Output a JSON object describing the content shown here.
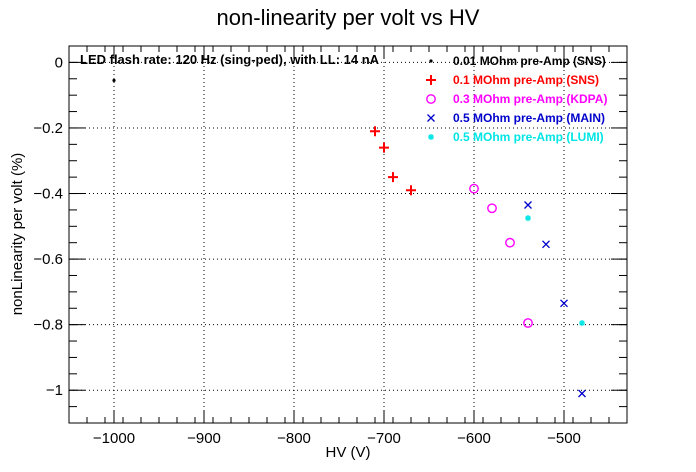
{
  "chart_data": {
    "type": "scatter",
    "title": "non-linearity per volt vs HV",
    "xlabel": "HV (V)",
    "ylabel": "nonLinearity per volt (%)",
    "xlim": [
      -1050,
      -430
    ],
    "ylim": [
      -1.1,
      0.05
    ],
    "x_ticks": [
      -1000,
      -900,
      -800,
      -700,
      -600,
      -500
    ],
    "y_ticks": [
      0,
      -0.2,
      -0.4,
      -0.6,
      -0.8,
      -1
    ],
    "grid": true,
    "annotation": "LED flash rate: 120 Hz  (sing-ped), with LL: 14 nA",
    "legend_position": "top-right",
    "series": [
      {
        "name": "0.01 MOhm pre-Amp (SNS)",
        "color": "#000000",
        "marker": "dot",
        "points": [
          [
            -1000,
            -0.055
          ]
        ]
      },
      {
        "name": "0.1 MOhm pre-Amp (SNS)",
        "color": "#ff0000",
        "marker": "plus",
        "points": [
          [
            -710,
            -0.21
          ],
          [
            -700,
            -0.26
          ],
          [
            -690,
            -0.35
          ],
          [
            -670,
            -0.39
          ]
        ]
      },
      {
        "name": "0.3 MOhm pre-Amp (KDPA)",
        "color": "#ff00ff",
        "marker": "circle",
        "points": [
          [
            -600,
            -0.385
          ],
          [
            -580,
            -0.445
          ],
          [
            -560,
            -0.55
          ],
          [
            -540,
            -0.795
          ]
        ]
      },
      {
        "name": "0.5 MOhm pre-Amp (MAIN)",
        "color": "#0000cc",
        "marker": "cross",
        "points": [
          [
            -540,
            -0.435
          ],
          [
            -520,
            -0.555
          ],
          [
            -500,
            -0.735
          ],
          [
            -480,
            -1.01
          ]
        ]
      },
      {
        "name": "0.5 MOhm pre-Amp (LUMI)",
        "color": "#00e5e5",
        "marker": "star",
        "points": [
          [
            -540,
            -0.475
          ],
          [
            -480,
            -0.795
          ]
        ]
      }
    ]
  }
}
